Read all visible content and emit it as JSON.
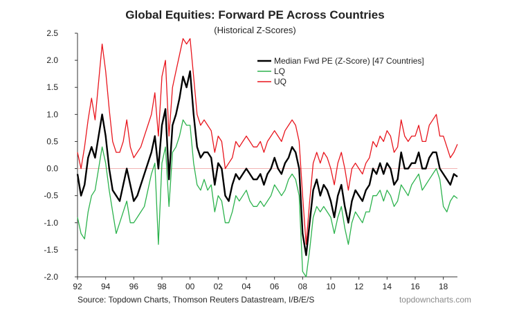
{
  "chart_data": {
    "type": "line",
    "title": "Global Equities: Forward PE Across Countries",
    "subtitle": "(Historical Z-Scores)",
    "xlabel": "",
    "ylabel": "",
    "xlim": [
      1992,
      2019
    ],
    "ylim": [
      -2.0,
      2.5
    ],
    "yticks": [
      2.5,
      2.0,
      1.5,
      1.0,
      0.5,
      0.0,
      -0.5,
      -1.0,
      -1.5,
      -2.0
    ],
    "ytick_labels": [
      "2.5",
      "2.0",
      "1.5",
      "1.0",
      "0.5",
      "0.0",
      "-0.5",
      "-1.0",
      "-1.5",
      "-2.0"
    ],
    "xticks": [
      1992,
      1994,
      1996,
      1998,
      2000,
      2002,
      2004,
      2006,
      2008,
      2010,
      2012,
      2014,
      2016,
      2018
    ],
    "xtick_labels": [
      "92",
      "94",
      "96",
      "98",
      "00",
      "02",
      "04",
      "06",
      "08",
      "10",
      "12",
      "14",
      "16",
      "18"
    ],
    "zero_line": true,
    "grid": false,
    "legend_position": "top-right",
    "x": [
      1992.0,
      1992.25,
      1992.5,
      1992.75,
      1993.0,
      1993.25,
      1993.5,
      1993.75,
      1994.0,
      1994.25,
      1994.5,
      1994.75,
      1995.0,
      1995.25,
      1995.5,
      1995.75,
      1996.0,
      1996.25,
      1996.5,
      1996.75,
      1997.0,
      1997.25,
      1997.5,
      1997.75,
      1998.0,
      1998.25,
      1998.5,
      1998.75,
      1999.0,
      1999.25,
      1999.5,
      1999.75,
      2000.0,
      2000.25,
      2000.5,
      2000.75,
      2001.0,
      2001.25,
      2001.5,
      2001.75,
      2002.0,
      2002.25,
      2002.5,
      2002.75,
      2003.0,
      2003.25,
      2003.5,
      2003.75,
      2004.0,
      2004.25,
      2004.5,
      2004.75,
      2005.0,
      2005.25,
      2005.5,
      2005.75,
      2006.0,
      2006.25,
      2006.5,
      2006.75,
      2007.0,
      2007.25,
      2007.5,
      2007.75,
      2008.0,
      2008.25,
      2008.5,
      2008.75,
      2009.0,
      2009.25,
      2009.5,
      2009.75,
      2010.0,
      2010.25,
      2010.5,
      2010.75,
      2011.0,
      2011.25,
      2011.5,
      2011.75,
      2012.0,
      2012.25,
      2012.5,
      2012.75,
      2013.0,
      2013.25,
      2013.5,
      2013.75,
      2014.0,
      2014.25,
      2014.5,
      2014.75,
      2015.0,
      2015.25,
      2015.5,
      2015.75,
      2016.0,
      2016.25,
      2016.5,
      2016.75,
      2017.0,
      2017.25,
      2017.5,
      2017.75,
      2018.0,
      2018.25,
      2018.5,
      2018.75,
      2019.0
    ],
    "series": [
      {
        "name": "Median Fwd PE (Z-Score) [47 Countries]",
        "color": "#000000",
        "values": [
          -0.1,
          -0.5,
          -0.3,
          0.2,
          0.4,
          0.2,
          0.6,
          1.0,
          0.6,
          0.0,
          -0.4,
          -0.5,
          -0.6,
          -0.3,
          0.0,
          -0.3,
          -0.6,
          -0.5,
          -0.3,
          -0.1,
          0.1,
          0.3,
          0.6,
          0.0,
          0.8,
          1.1,
          -0.2,
          0.8,
          1.0,
          1.3,
          1.7,
          1.5,
          1.8,
          1.0,
          0.4,
          0.2,
          0.3,
          0.3,
          0.2,
          -0.3,
          0.1,
          0.0,
          -0.5,
          -0.6,
          -0.3,
          -0.1,
          -0.2,
          -0.1,
          0.0,
          -0.1,
          -0.2,
          -0.2,
          -0.1,
          -0.3,
          -0.1,
          0.0,
          0.2,
          0.0,
          -0.1,
          0.1,
          0.2,
          0.4,
          0.3,
          0.0,
          -1.2,
          -1.6,
          -1.0,
          -0.4,
          -0.2,
          -0.5,
          -0.3,
          -0.4,
          -0.6,
          -0.9,
          -0.5,
          -0.3,
          -0.7,
          -1.0,
          -0.6,
          -0.4,
          -0.5,
          -0.6,
          -0.4,
          -0.3,
          0.0,
          -0.1,
          0.1,
          -0.1,
          0.1,
          0.0,
          -0.3,
          -0.2,
          0.3,
          0.0,
          0.0,
          0.1,
          0.1,
          0.3,
          0.0,
          0.0,
          0.2,
          0.3,
          0.3,
          0.0,
          -0.1,
          -0.2,
          -0.3,
          -0.1,
          -0.15
        ]
      },
      {
        "name": "LQ",
        "color": "#2bb24c",
        "values": [
          -0.9,
          -1.2,
          -1.3,
          -0.8,
          -0.5,
          -0.4,
          0.0,
          0.4,
          0.1,
          -0.4,
          -0.8,
          -1.2,
          -1.0,
          -0.8,
          -0.6,
          -1.0,
          -1.0,
          -0.9,
          -0.8,
          -0.7,
          -0.4,
          -0.1,
          0.1,
          -1.4,
          0.1,
          0.4,
          -0.7,
          0.3,
          0.4,
          0.6,
          0.9,
          0.8,
          0.8,
          0.1,
          -0.3,
          -0.4,
          -0.2,
          -0.4,
          -0.3,
          -0.8,
          -0.5,
          -0.6,
          -1.0,
          -1.0,
          -0.8,
          -0.5,
          -0.6,
          -0.5,
          -0.4,
          -0.6,
          -0.7,
          -0.7,
          -0.6,
          -0.7,
          -0.6,
          -0.5,
          -0.3,
          -0.4,
          -0.5,
          -0.4,
          -0.2,
          -0.1,
          -0.2,
          -0.5,
          -1.9,
          -2.0,
          -1.5,
          -0.9,
          -0.7,
          -0.8,
          -0.7,
          -0.8,
          -0.9,
          -1.2,
          -0.9,
          -0.7,
          -1.1,
          -1.4,
          -1.0,
          -0.8,
          -0.9,
          -1.0,
          -0.8,
          -0.8,
          -0.5,
          -0.5,
          -0.4,
          -0.6,
          -0.4,
          -0.5,
          -0.7,
          -0.6,
          -0.3,
          -0.4,
          -0.5,
          -0.3,
          -0.2,
          -0.1,
          -0.4,
          -0.3,
          -0.2,
          -0.1,
          0.0,
          -0.2,
          -0.7,
          -0.8,
          -0.6,
          -0.5,
          -0.55
        ]
      },
      {
        "name": "UQ",
        "color": "#e8141c",
        "values": [
          0.3,
          0.0,
          0.4,
          0.9,
          1.3,
          0.9,
          1.6,
          2.3,
          1.8,
          1.1,
          0.5,
          0.3,
          0.3,
          0.5,
          0.9,
          0.4,
          0.2,
          0.3,
          0.4,
          0.6,
          0.8,
          1.0,
          1.4,
          0.6,
          1.7,
          2.0,
          0.6,
          1.5,
          1.8,
          2.1,
          2.4,
          2.3,
          2.4,
          1.7,
          1.0,
          0.8,
          0.9,
          0.8,
          0.7,
          0.3,
          0.6,
          0.5,
          0.0,
          0.1,
          0.2,
          0.5,
          0.4,
          0.5,
          0.6,
          0.5,
          0.4,
          0.4,
          0.5,
          0.3,
          0.5,
          0.6,
          0.7,
          0.6,
          0.5,
          0.7,
          0.8,
          0.9,
          0.8,
          0.5,
          -0.5,
          -1.4,
          -0.6,
          0.1,
          0.3,
          0.1,
          0.3,
          0.2,
          0.0,
          -0.3,
          0.1,
          0.3,
          0.0,
          -0.4,
          0.0,
          0.1,
          0.0,
          -0.1,
          0.1,
          0.2,
          0.5,
          0.4,
          0.6,
          0.5,
          0.7,
          0.6,
          0.3,
          0.4,
          0.9,
          0.6,
          0.5,
          0.6,
          0.6,
          0.8,
          0.5,
          0.5,
          0.8,
          0.9,
          1.0,
          0.6,
          0.6,
          0.4,
          0.2,
          0.3,
          0.45
        ]
      }
    ]
  },
  "footer": {
    "source": "Source: Topdown Charts, Thomson Reuters Datastream, I/B/E/S",
    "brand": "topdowncharts.com"
  }
}
